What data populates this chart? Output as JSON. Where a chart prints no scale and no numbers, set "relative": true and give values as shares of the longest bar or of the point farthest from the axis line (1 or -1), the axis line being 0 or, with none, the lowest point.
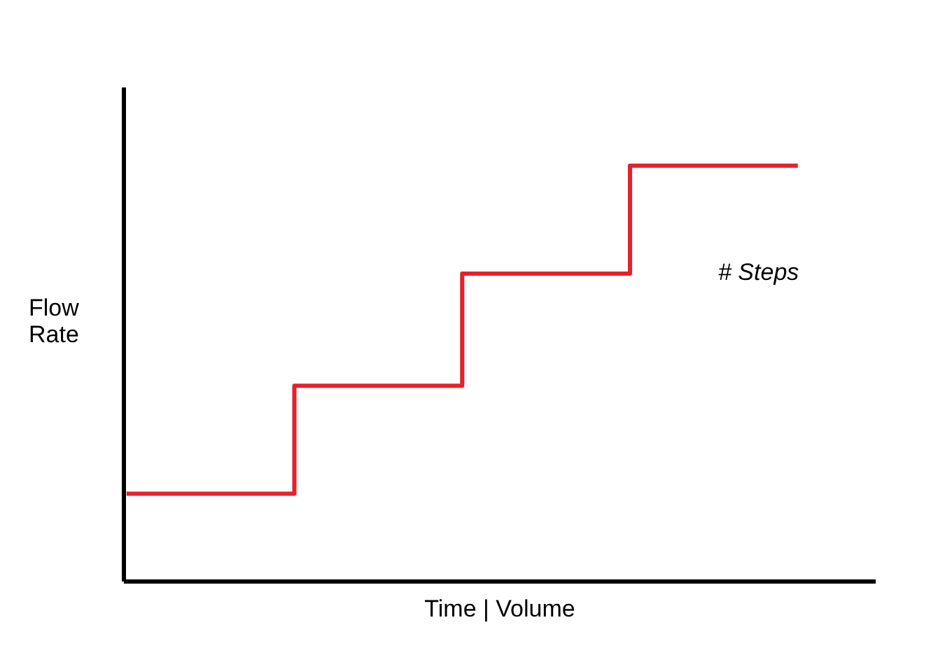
{
  "chart_data": {
    "type": "step",
    "relative": true,
    "categories": [
      null,
      null,
      null,
      null,
      null
    ],
    "values": [
      0.21,
      0.47,
      0.74,
      1,
      1
    ],
    "color": "#e8202a",
    "xlabel": "Time | Volume",
    "ylabel": "Flow Rate",
    "annotations": [
      "# Steps"
    ],
    "marker": "none",
    "line_style": "solid"
  }
}
